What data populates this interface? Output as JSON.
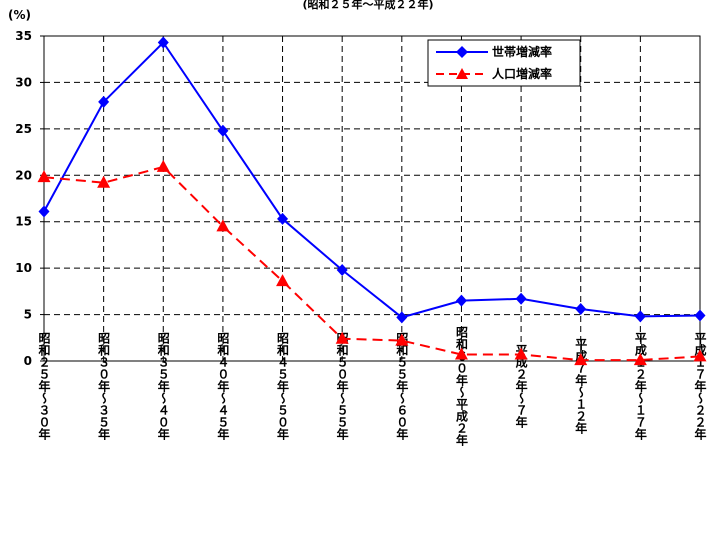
{
  "chart_data": {
    "type": "line",
    "title": "(昭和２５年～平成２２年)",
    "ylabel": "(%)",
    "xlabel": "",
    "ylim": [
      0,
      35
    ],
    "yticks": [
      0,
      5,
      10,
      15,
      20,
      25,
      30,
      35
    ],
    "grid": true,
    "legend_position": "top-right",
    "categories": [
      "昭和２５年～３０年",
      "昭和３０年～３５年",
      "昭和３５年～４０年",
      "昭和４０年～４５年",
      "昭和４５年～５０年",
      "昭和５０年～５５年",
      "昭和５５年～６０年",
      "昭和６０年～平成２年",
      "平成２年～７年",
      "平成７年～１２年",
      "平成１２年～１７年",
      "平成１７年～２２年"
    ],
    "series": [
      {
        "name": "世帯増減率",
        "color": "#0000ff",
        "marker": "diamond",
        "line_style": "solid",
        "values": [
          16.1,
          27.9,
          34.3,
          24.8,
          15.3,
          9.8,
          4.7,
          6.5,
          6.7,
          5.6,
          4.8,
          4.9
        ]
      },
      {
        "name": "人口増減率",
        "color": "#ff0000",
        "marker": "triangle",
        "line_style": "dashed",
        "values": [
          19.8,
          19.2,
          20.9,
          14.5,
          8.6,
          2.4,
          2.2,
          0.7,
          0.7,
          0.1,
          0.1,
          0.5
        ]
      }
    ]
  }
}
